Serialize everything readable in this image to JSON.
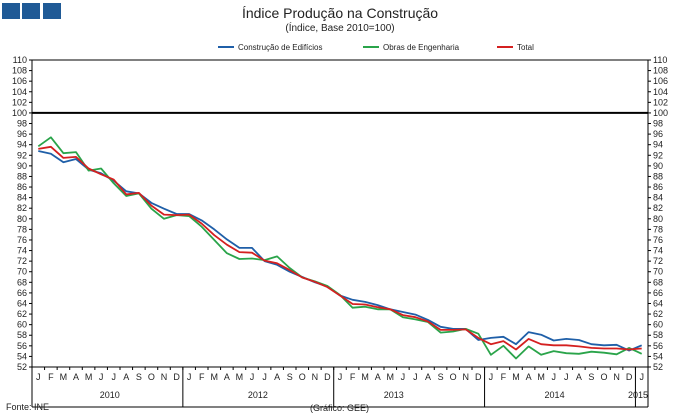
{
  "chart_data": {
    "type": "line",
    "title": "Índice Produção na Construção",
    "subtitle": "(Índice, Base 2010=100)",
    "source": "Fonte: INE",
    "credit": "(Gráfico: GEE)",
    "xlabel": "",
    "ylabel": "",
    "ylim": [
      52,
      110
    ],
    "ytick_step": 2,
    "reference_line": 100,
    "month_labels": [
      "J",
      "F",
      "M",
      "A",
      "M",
      "J",
      "J",
      "A",
      "S",
      "O",
      "N",
      "D",
      "J",
      "F",
      "M",
      "A",
      "M",
      "J",
      "J",
      "A",
      "S",
      "O",
      "N",
      "D",
      "J",
      "F",
      "M",
      "A",
      "M",
      "J",
      "J",
      "A",
      "S",
      "O",
      "N",
      "D",
      "J",
      "F",
      "M",
      "A",
      "M",
      "J",
      "J",
      "A",
      "S",
      "O",
      "N",
      "D",
      "J"
    ],
    "year_labels": [
      "2010",
      "2012",
      "2013",
      "2014",
      "2015"
    ],
    "series": [
      {
        "name": "Construção de Edifícios",
        "color": "#1f5fa8",
        "values": [
          92.8,
          92.3,
          90.7,
          91.3,
          89.3,
          88.6,
          87.2,
          85.2,
          84.8,
          83.0,
          81.9,
          80.9,
          80.9,
          79.7,
          78.0,
          76.1,
          74.5,
          74.5,
          72.0,
          71.3,
          70.0,
          69.0,
          68.0,
          67.2,
          65.5,
          64.7,
          64.3,
          63.7,
          62.9,
          62.4,
          61.9,
          60.9,
          59.6,
          59.2,
          59.2,
          57.1,
          57.5,
          57.7,
          56.3,
          58.6,
          58.1,
          57.0,
          57.3,
          57.1,
          56.3,
          56.1,
          56.2,
          55.1,
          56.1
        ]
      },
      {
        "name": "Obras de Engenharia",
        "color": "#2aa44a",
        "values": [
          93.7,
          95.4,
          92.4,
          92.6,
          89.1,
          89.5,
          86.7,
          84.3,
          84.8,
          81.9,
          80.0,
          80.7,
          80.5,
          78.5,
          76.0,
          73.5,
          72.4,
          72.5,
          72.2,
          72.9,
          70.7,
          68.9,
          68.2,
          67.3,
          65.6,
          63.2,
          63.4,
          62.9,
          62.9,
          61.4,
          61.0,
          60.5,
          58.5,
          58.7,
          59.2,
          58.3,
          54.3,
          56.0,
          53.6,
          55.9,
          54.3,
          55.0,
          54.6,
          54.5,
          54.9,
          54.7,
          54.4,
          55.6,
          54.5
        ]
      },
      {
        "name": "Total",
        "color": "#d42020",
        "values": [
          93.2,
          93.6,
          91.5,
          91.7,
          89.5,
          88.4,
          87.4,
          84.6,
          84.9,
          82.5,
          80.8,
          80.7,
          80.8,
          79.1,
          76.9,
          75.1,
          73.7,
          73.6,
          72.1,
          71.6,
          70.3,
          68.9,
          68.1,
          67.1,
          65.5,
          63.9,
          63.8,
          63.3,
          62.9,
          61.8,
          61.4,
          60.6,
          59.0,
          59.0,
          59.1,
          57.5,
          56.3,
          56.9,
          55.3,
          57.3,
          56.3,
          56.1,
          56.1,
          55.9,
          55.6,
          55.5,
          55.5,
          55.3,
          55.5
        ]
      }
    ]
  }
}
